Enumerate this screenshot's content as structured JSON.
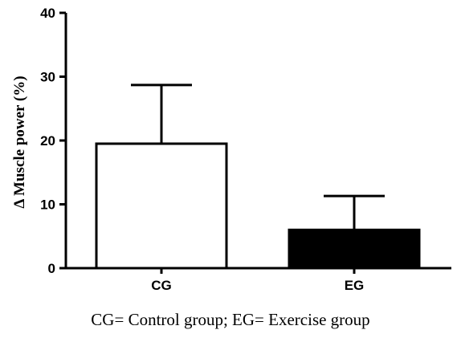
{
  "chart_data": {
    "type": "bar",
    "categories": [
      "CG",
      "EG"
    ],
    "values": [
      19.5,
      6.0
    ],
    "error_upper": [
      28.7,
      11.3
    ],
    "bar_fills": [
      "#ffffff",
      "#000000"
    ],
    "ylabel": "Δ  Muscle power (%)",
    "xlabel": "",
    "ylim": [
      0,
      40
    ],
    "yticks": [
      0,
      10,
      20,
      30,
      40
    ],
    "grid": false
  },
  "caption": "CG= Control group; EG= Exercise group"
}
